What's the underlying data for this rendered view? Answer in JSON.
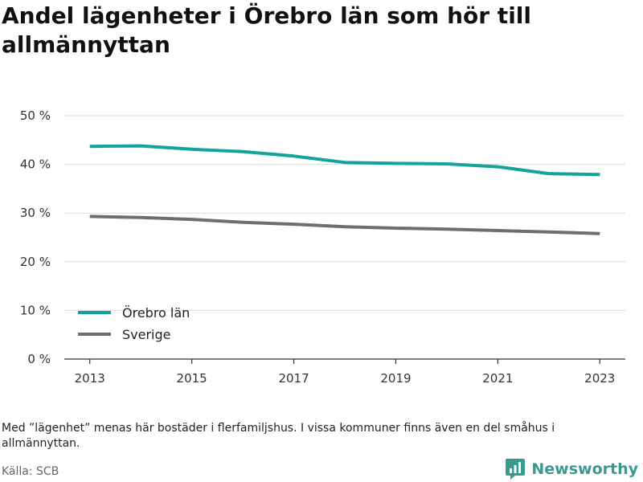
{
  "header": {
    "title": "Andel lägenheter i Örebro län som hör till allmännyttan"
  },
  "footer": {
    "note": "Med ”lägenhet” menas här bostäder i flerfamiljshus. I vissa kommuner finns även en del småhus i allmännyttan.",
    "source": "Källa: SCB",
    "brand": "Newsworthy",
    "brand_icon": "newsworthy-logo-icon",
    "brand_color": "#3a9a90"
  },
  "chart_data": {
    "type": "line",
    "title": "Andel lägenheter i Örebro län som hör till allmännyttan",
    "xlabel": "",
    "ylabel": "",
    "x": [
      2013,
      2014,
      2015,
      2016,
      2017,
      2018,
      2019,
      2020,
      2021,
      2022,
      2023
    ],
    "xticks": [
      2013,
      2015,
      2017,
      2019,
      2021,
      2023
    ],
    "xtick_labels": [
      "2013",
      "2015",
      "2017",
      "2019",
      "2021",
      "2023"
    ],
    "xlim": [
      2012.5,
      2023.5
    ],
    "ylim": [
      0,
      50
    ],
    "yticks": [
      0,
      10,
      20,
      30,
      40,
      50
    ],
    "ytick_labels": [
      "0 %",
      "10 %",
      "20 %",
      "30 %",
      "40 %",
      "50 %"
    ],
    "grid": true,
    "legend_position": "bottom-left",
    "series": [
      {
        "name": "Örebro län",
        "color": "#12a39b",
        "values": [
          43.7,
          43.8,
          43.1,
          42.6,
          41.7,
          40.4,
          40.2,
          40.1,
          39.5,
          38.1,
          37.9
        ]
      },
      {
        "name": "Sverige",
        "color": "#6e6e70",
        "values": [
          29.3,
          29.1,
          28.7,
          28.1,
          27.7,
          27.2,
          26.9,
          26.7,
          26.4,
          26.1,
          25.8
        ]
      }
    ]
  }
}
